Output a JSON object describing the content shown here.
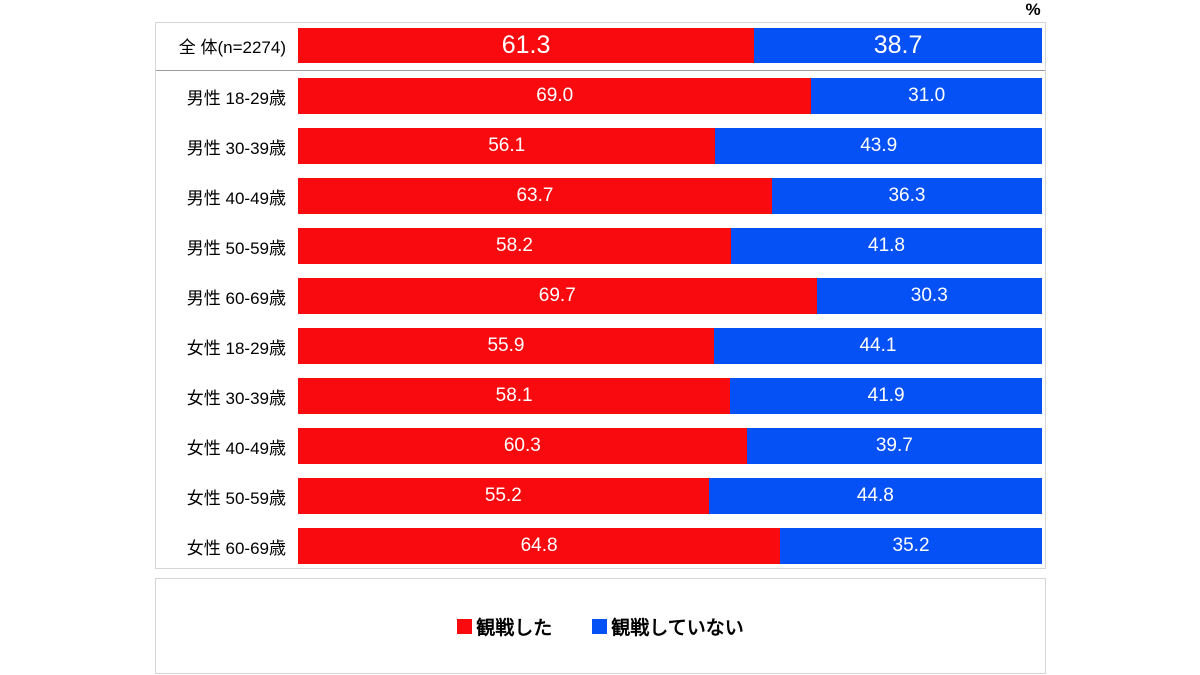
{
  "unit": "%",
  "colors": {
    "watched": "#f90a0e",
    "not_watched": "#0651f6",
    "box_border": "#d6d6d6",
    "separator": "#9c9c9c",
    "value_text": "#ffffff"
  },
  "legend": {
    "items": [
      {
        "label": "観戦した",
        "color": "#f90a0e"
      },
      {
        "label": "観戦していない",
        "color": "#0651f6"
      }
    ]
  },
  "chart_data": {
    "type": "bar",
    "orientation": "horizontal",
    "stacked": true,
    "unit": "%",
    "xlim": [
      0,
      100
    ],
    "legend_position": "bottom",
    "value_labels": "inside-centered-white",
    "categories": [
      "全 体(n=2274)",
      "男性 18-29歳",
      "男性 30-39歳",
      "男性 40-49歳",
      "男性 50-59歳",
      "男性 60-69歳",
      "女性 18-29歳",
      "女性 30-39歳",
      "女性 40-49歳",
      "女性 50-59歳",
      "女性 60-69歳"
    ],
    "series": [
      {
        "name": "観戦した",
        "color": "#f90a0e",
        "values": [
          61.3,
          69.0,
          56.1,
          63.7,
          58.2,
          69.7,
          55.9,
          58.1,
          60.3,
          55.2,
          64.8
        ]
      },
      {
        "name": "観戦していない",
        "color": "#0651f6",
        "values": [
          38.7,
          31.0,
          43.9,
          36.3,
          41.8,
          30.3,
          44.1,
          41.9,
          39.7,
          44.8,
          35.2
        ]
      }
    ]
  }
}
